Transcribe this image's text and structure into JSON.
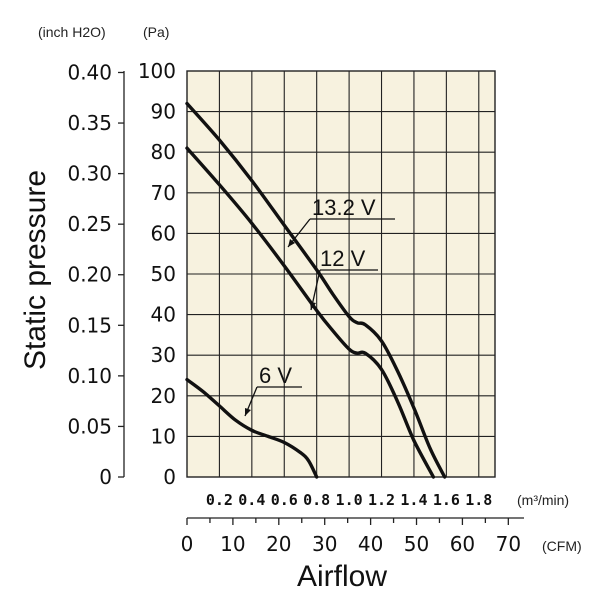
{
  "chart_data": {
    "type": "line",
    "title": "",
    "xlabel": "Airflow",
    "ylabel": "Static pressure",
    "units": {
      "y_left": "(inch H2O)",
      "y_right": "(Pa)",
      "x_top": "(m³/min)",
      "x_bottom": "(CFM)"
    },
    "x_m3min_range": [
      0,
      1.9
    ],
    "x_m3min_ticks": [
      "0.2",
      "0.4",
      "0.6",
      "0.8",
      "1.0",
      "1.2",
      "1.4",
      "1.6",
      "1.8"
    ],
    "x_cfm_ticks": [
      "0",
      "10",
      "20",
      "30",
      "40",
      "50",
      "60",
      "70"
    ],
    "y_pa_range": [
      0,
      100
    ],
    "y_pa_ticks": [
      "0",
      "10",
      "20",
      "30",
      "40",
      "50",
      "60",
      "70",
      "80",
      "90",
      "100"
    ],
    "y_inch_ticks": [
      "0",
      "0.05",
      "0.10",
      "0.15",
      "0.20",
      "0.25",
      "0.30",
      "0.35",
      "0.40"
    ],
    "grid": true,
    "background": "#f7f2df",
    "line_color": "#111111",
    "series": [
      {
        "name": "13.2 V",
        "x_m3min": [
          0,
          0.2,
          0.4,
          0.6,
          0.8,
          0.9,
          1.0,
          1.05,
          1.1,
          1.2,
          1.3,
          1.4,
          1.5,
          1.59
        ],
        "y_pa": [
          92,
          83,
          73,
          62,
          51,
          45,
          39.5,
          38,
          37.5,
          33.5,
          26,
          17,
          7,
          0
        ]
      },
      {
        "name": "12 V",
        "x_m3min": [
          0,
          0.2,
          0.4,
          0.6,
          0.8,
          0.9,
          1.0,
          1.05,
          1.1,
          1.2,
          1.3,
          1.4,
          1.52
        ],
        "y_pa": [
          81,
          72,
          62.5,
          52,
          41,
          36,
          31.5,
          30.5,
          30.5,
          26.5,
          18.5,
          9,
          0
        ]
      },
      {
        "name": "6 V",
        "x_m3min": [
          0,
          0.1,
          0.2,
          0.3,
          0.4,
          0.5,
          0.6,
          0.7,
          0.75,
          0.8
        ],
        "y_pa": [
          24,
          21,
          17.5,
          14,
          11.5,
          10,
          8.5,
          6,
          4,
          0
        ]
      }
    ]
  }
}
